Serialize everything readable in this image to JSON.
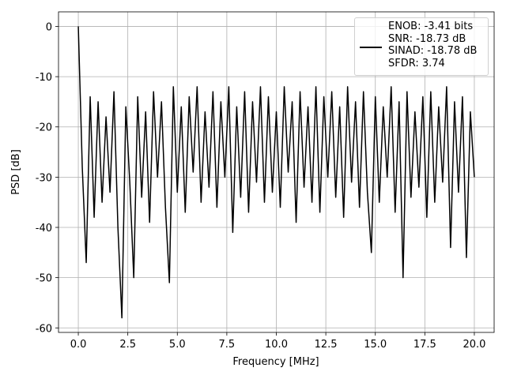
{
  "chart_data": {
    "type": "line",
    "xlabel": "Frequency [MHz]",
    "ylabel": "PSD [dB]",
    "xlim": [
      -1,
      21
    ],
    "ylim": [
      -60.9,
      2.9
    ],
    "xticks": [
      {
        "value": 0,
        "label": "0.0"
      },
      2.5,
      {
        "value": 5,
        "label": "5.0"
      },
      7.5,
      {
        "value": 10,
        "label": "10.0"
      },
      12.5,
      {
        "value": 15,
        "label": "15.0"
      },
      17.5,
      {
        "value": 20,
        "label": "20.0"
      }
    ],
    "yticks": [
      0,
      -10,
      -20,
      -30,
      -40,
      -50,
      -60
    ],
    "grid": true,
    "legend": "upper right",
    "x": [
      0,
      0.2,
      0.4,
      0.6,
      0.8,
      1,
      1.2,
      1.4,
      1.6,
      1.8,
      2,
      2.2,
      2.4,
      2.6,
      2.8,
      3,
      3.2,
      3.4,
      3.6,
      3.8,
      4,
      4.2,
      4.4,
      4.6,
      4.8,
      5,
      5.2,
      5.4,
      5.6,
      5.8,
      6,
      6.2,
      6.4,
      6.6,
      6.8,
      7,
      7.2,
      7.4,
      7.6,
      7.8,
      8,
      8.2,
      8.4,
      8.6,
      8.8,
      9,
      9.2,
      9.4,
      9.6,
      9.8,
      10,
      10.2,
      10.4,
      10.6,
      10.8,
      11,
      11.2,
      11.4,
      11.6,
      11.8,
      12,
      12.2,
      12.4,
      12.6,
      12.8,
      13,
      13.2,
      13.4,
      13.6,
      13.8,
      14,
      14.2,
      14.4,
      14.6,
      14.8,
      15,
      15.2,
      15.4,
      15.6,
      15.8,
      16,
      16.2,
      16.4,
      16.6,
      16.8,
      17,
      17.2,
      17.4,
      17.6,
      17.8,
      18,
      18.2,
      18.4,
      18.6,
      18.8,
      19,
      19.2,
      19.4,
      19.6,
      19.8,
      20
    ],
    "series": [
      {
        "name": "ENOB: -3.41 bits\nSNR: -18.73 dB\nSINAD: -18.78 dB\nSFDR: 3.74",
        "color": "#000000",
        "values": [
          0,
          -28,
          -47,
          -14,
          -38,
          -15,
          -35,
          -18,
          -33,
          -13,
          -40,
          -58,
          -16,
          -31,
          -50,
          -14,
          -34,
          -17,
          -39,
          -13,
          -30,
          -15,
          -36,
          -51,
          -12,
          -33,
          -16,
          -37,
          -14,
          -29,
          -12,
          -35,
          -17,
          -32,
          -13,
          -36,
          -15,
          -30,
          -12,
          -41,
          -16,
          -34,
          -13,
          -37,
          -15,
          -31,
          -12,
          -35,
          -14,
          -33,
          -17,
          -36,
          -12,
          -29,
          -15,
          -39,
          -13,
          -32,
          -16,
          -35,
          -12,
          -37,
          -14,
          -30,
          -13,
          -34,
          -16,
          -38,
          -12,
          -31,
          -15,
          -36,
          -13,
          -33,
          -45,
          -14,
          -35,
          -16,
          -30,
          -12,
          -37,
          -15,
          -50,
          -13,
          -34,
          -17,
          -32,
          -14,
          -38,
          -13,
          -35,
          -16,
          -31,
          -12,
          -44,
          -15,
          -33,
          -14,
          -46,
          -17,
          -30
        ]
      }
    ]
  }
}
